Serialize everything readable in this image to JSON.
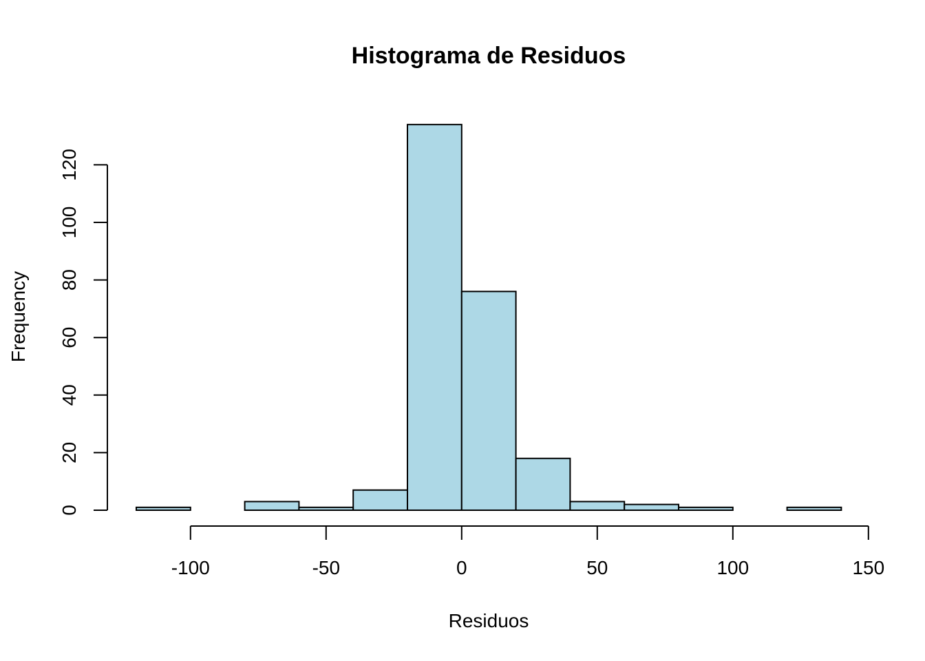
{
  "chart_data": {
    "type": "bar",
    "title": "Histograma de Residuos",
    "xlabel": "Residuos",
    "ylabel": "Frequency",
    "bin_edges": [
      -120,
      -100,
      -80,
      -60,
      -40,
      -20,
      0,
      20,
      40,
      60,
      80,
      100,
      120,
      140
    ],
    "values": [
      1,
      0,
      3,
      1,
      7,
      134,
      76,
      18,
      3,
      2,
      1,
      0,
      1
    ],
    "xlim": [
      -120,
      150
    ],
    "ylim": [
      0,
      134
    ],
    "x_ticks": [
      -100,
      -50,
      0,
      50,
      100,
      150
    ],
    "y_ticks": [
      0,
      20,
      40,
      60,
      80,
      100,
      120
    ],
    "bar_color": "#add8e6",
    "grid": false,
    "legend": "none"
  }
}
